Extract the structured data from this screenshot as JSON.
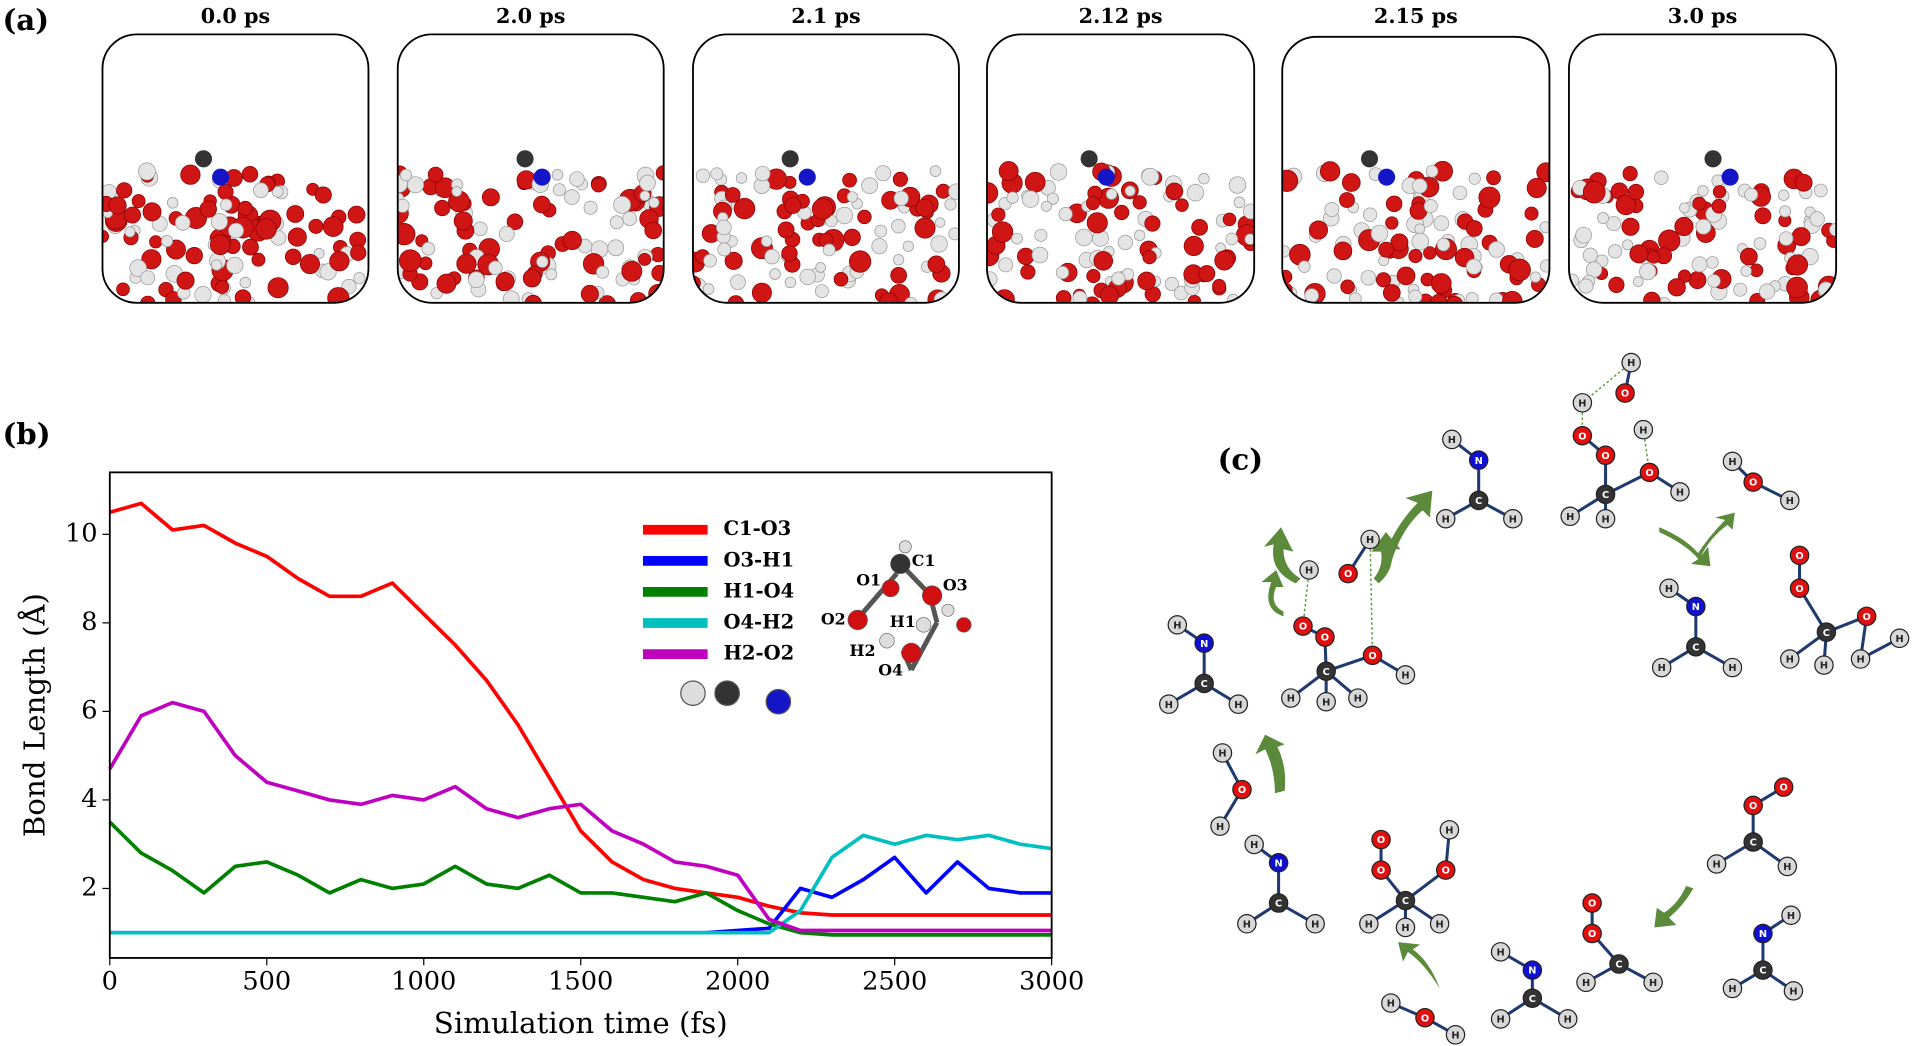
{
  "panels": {
    "a": "(a)",
    "b": "(b)",
    "c": "(c)"
  },
  "snapshots": [
    "0.0 ps",
    "2.0 ps",
    "2.1 ps",
    "2.12 ps",
    "2.15 ps",
    "3.0 ps"
  ],
  "chart_data": {
    "type": "line",
    "xlabel": "Simulation time (fs)",
    "ylabel": "Bond Length (Å)",
    "x": [
      0,
      100,
      200,
      300,
      400,
      500,
      600,
      700,
      800,
      900,
      1000,
      1100,
      1200,
      1300,
      1400,
      1500,
      1600,
      1700,
      1800,
      1900,
      2000,
      2100,
      2200,
      2300,
      2400,
      2500,
      2600,
      2700,
      2800,
      2900,
      3000
    ],
    "series": [
      {
        "name": "C1-O3",
        "color": "#ff0000",
        "values": [
          10.5,
          10.7,
          10.1,
          10.2,
          9.8,
          9.5,
          9.0,
          8.6,
          8.6,
          8.9,
          8.2,
          7.5,
          6.7,
          5.7,
          4.5,
          3.3,
          2.6,
          2.2,
          2.0,
          1.9,
          1.8,
          1.6,
          1.45,
          1.4,
          1.4,
          1.4,
          1.4,
          1.4,
          1.4,
          1.4,
          1.4
        ]
      },
      {
        "name": "O3-H1",
        "color": "#0000ff",
        "values": [
          1.0,
          1.0,
          1.0,
          1.0,
          1.0,
          1.0,
          1.0,
          1.0,
          1.0,
          1.0,
          1.0,
          1.0,
          1.0,
          1.0,
          1.0,
          1.0,
          1.0,
          1.0,
          1.0,
          1.0,
          1.05,
          1.1,
          2.0,
          1.8,
          2.2,
          2.7,
          1.9,
          2.6,
          2.0,
          1.9,
          1.9
        ]
      },
      {
        "name": "H1-O4",
        "color": "#008000",
        "values": [
          3.5,
          2.8,
          2.4,
          1.9,
          2.5,
          2.6,
          2.3,
          1.9,
          2.2,
          2.0,
          2.1,
          2.5,
          2.1,
          2.0,
          2.3,
          1.9,
          1.9,
          1.8,
          1.7,
          1.9,
          1.5,
          1.2,
          1.0,
          0.95,
          0.95,
          0.95,
          0.95,
          0.95,
          0.95,
          0.95,
          0.95
        ]
      },
      {
        "name": "O4-H2",
        "color": "#00bfbf",
        "values": [
          1.0,
          1.0,
          1.0,
          1.0,
          1.0,
          1.0,
          1.0,
          1.0,
          1.0,
          1.0,
          1.0,
          1.0,
          1.0,
          1.0,
          1.0,
          1.0,
          1.0,
          1.0,
          1.0,
          1.0,
          1.0,
          1.0,
          1.5,
          2.7,
          3.2,
          3.0,
          3.2,
          3.1,
          3.2,
          3.0,
          2.9
        ]
      },
      {
        "name": "H2-O2",
        "color": "#bf00bf",
        "values": [
          4.7,
          5.9,
          6.2,
          6.0,
          5.0,
          4.4,
          4.2,
          4.0,
          3.9,
          4.1,
          4.0,
          4.3,
          3.8,
          3.6,
          3.8,
          3.9,
          3.3,
          3.0,
          2.6,
          2.5,
          2.3,
          1.3,
          1.05,
          1.05,
          1.05,
          1.05,
          1.05,
          1.05,
          1.05,
          1.05,
          1.05
        ]
      }
    ],
    "xlim": [
      0,
      3000
    ],
    "xticks": [
      0,
      500,
      1000,
      1500,
      2000,
      2500,
      3000
    ],
    "ylim": [
      0.43,
      11.4
    ],
    "yticks": [
      2,
      4,
      6,
      8,
      10
    ],
    "legend": "upper right",
    "inset_labels": [
      "C1",
      "O1",
      "O3",
      "O2",
      "H1",
      "H2",
      "O4"
    ]
  },
  "molecules": [
    [
      "H",
      "N",
      "C",
      "H",
      "H"
    ],
    [
      "H",
      "O",
      "H",
      "H",
      "O",
      "O",
      "O",
      "C",
      "H",
      "H",
      "H"
    ],
    [
      "H",
      "O",
      "H"
    ],
    [
      "H",
      "N",
      "C",
      "H",
      "H"
    ],
    [
      "O",
      "O",
      "O",
      "C",
      "H",
      "H",
      "H",
      "H"
    ],
    [
      "H",
      "N",
      "C",
      "H",
      "H"
    ],
    [
      "H",
      "O",
      "H",
      "O",
      "O",
      "O",
      "H",
      "C",
      "H",
      "H",
      "H"
    ],
    [
      "H",
      "O",
      "H"
    ],
    [
      "H",
      "N",
      "C",
      "H",
      "H"
    ],
    [
      "O",
      "O",
      "H",
      "O",
      "C",
      "H",
      "H",
      "H"
    ],
    [
      "H",
      "O",
      "H"
    ],
    [
      "H",
      "N",
      "C",
      "H",
      "H"
    ],
    [
      "O",
      "O",
      "C",
      "H",
      "H"
    ],
    [
      "O",
      "O",
      "C",
      "H",
      "H"
    ],
    [
      "H",
      "N",
      "C",
      "H",
      "H"
    ]
  ]
}
